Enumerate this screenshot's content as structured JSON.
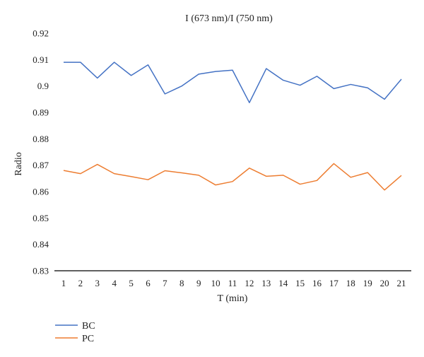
{
  "chart_data": {
    "type": "line",
    "title": "I (673 nm)/I (750 nm)",
    "xlabel": "T (min)",
    "ylabel": "Radio",
    "x": [
      1,
      2,
      3,
      4,
      5,
      6,
      7,
      8,
      9,
      10,
      11,
      12,
      13,
      14,
      15,
      16,
      17,
      18,
      19,
      20,
      21
    ],
    "ylim": [
      0.83,
      0.92
    ],
    "yticks": [
      "0.83",
      "0.84",
      "0.85",
      "0.86",
      "0.87",
      "0.88",
      "0.89",
      "0.9",
      "0.91",
      "0.92"
    ],
    "grid": false,
    "legend_position": "bottom-left",
    "series": [
      {
        "name": "BC",
        "color": "#4472C4",
        "values": [
          0.909,
          0.909,
          0.903,
          0.909,
          0.904,
          0.908,
          0.897,
          0.9,
          0.9045,
          0.9055,
          0.906,
          0.8937,
          0.9066,
          0.9022,
          0.9003,
          0.9037,
          0.899,
          0.9006,
          0.8993,
          0.895,
          0.9026
        ]
      },
      {
        "name": "PC",
        "color": "#ED7D31",
        "values": [
          0.868,
          0.8668,
          0.8703,
          0.8668,
          0.8657,
          0.8645,
          0.8679,
          0.8671,
          0.8662,
          0.8625,
          0.8638,
          0.8689,
          0.8658,
          0.8662,
          0.8628,
          0.8642,
          0.8706,
          0.8654,
          0.8672,
          0.8606,
          0.8661
        ]
      }
    ]
  }
}
